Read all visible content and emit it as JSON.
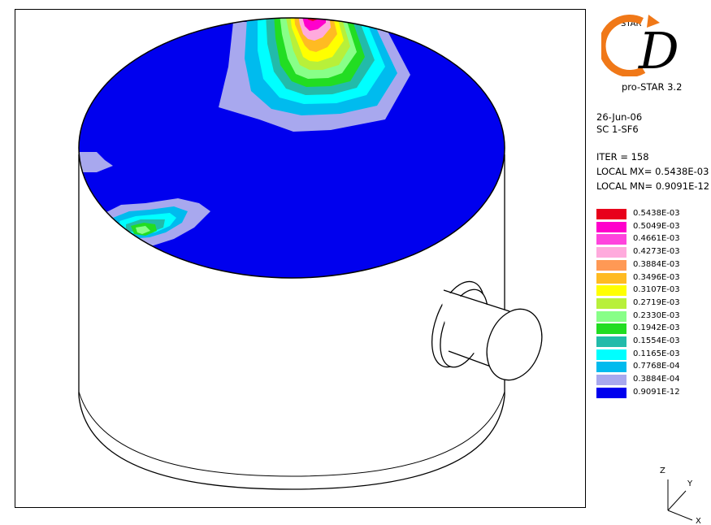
{
  "logo": {
    "star_text": "STAR",
    "letter": "D",
    "product": "pro-STAR 3.2"
  },
  "info": {
    "date": "26-Jun-06",
    "case": "SC  1-SF6",
    "iter": "ITER =    158",
    "local_mx": "LOCAL MX= 0.5438E-03",
    "local_mn": "LOCAL MN= 0.9091E-12"
  },
  "legend": [
    {
      "label": "0.5438E-03",
      "color": "#e8001b"
    },
    {
      "label": "0.5049E-03",
      "color": "#ff00cc"
    },
    {
      "label": "0.4661E-03",
      "color": "#ff44dd"
    },
    {
      "label": "0.4273E-03",
      "color": "#ffaadd"
    },
    {
      "label": "0.3884E-03",
      "color": "#ff9955"
    },
    {
      "label": "0.3496E-03",
      "color": "#ffbb22"
    },
    {
      "label": "0.3107E-03",
      "color": "#ffff00"
    },
    {
      "label": "0.2719E-03",
      "color": "#b8f03a"
    },
    {
      "label": "0.2330E-03",
      "color": "#88ff88"
    },
    {
      "label": "0.1942E-03",
      "color": "#22dd22"
    },
    {
      "label": "0.1554E-03",
      "color": "#22bbaa"
    },
    {
      "label": "0.1165E-03",
      "color": "#00ffff"
    },
    {
      "label": "0.7768E-04",
      "color": "#00bbee"
    },
    {
      "label": "0.3884E-04",
      "color": "#a8a8ee"
    },
    {
      "label": "0.9091E-12",
      "color": "#0000ee"
    }
  ],
  "axes": {
    "z": "Z",
    "y": "Y",
    "x": "X"
  }
}
